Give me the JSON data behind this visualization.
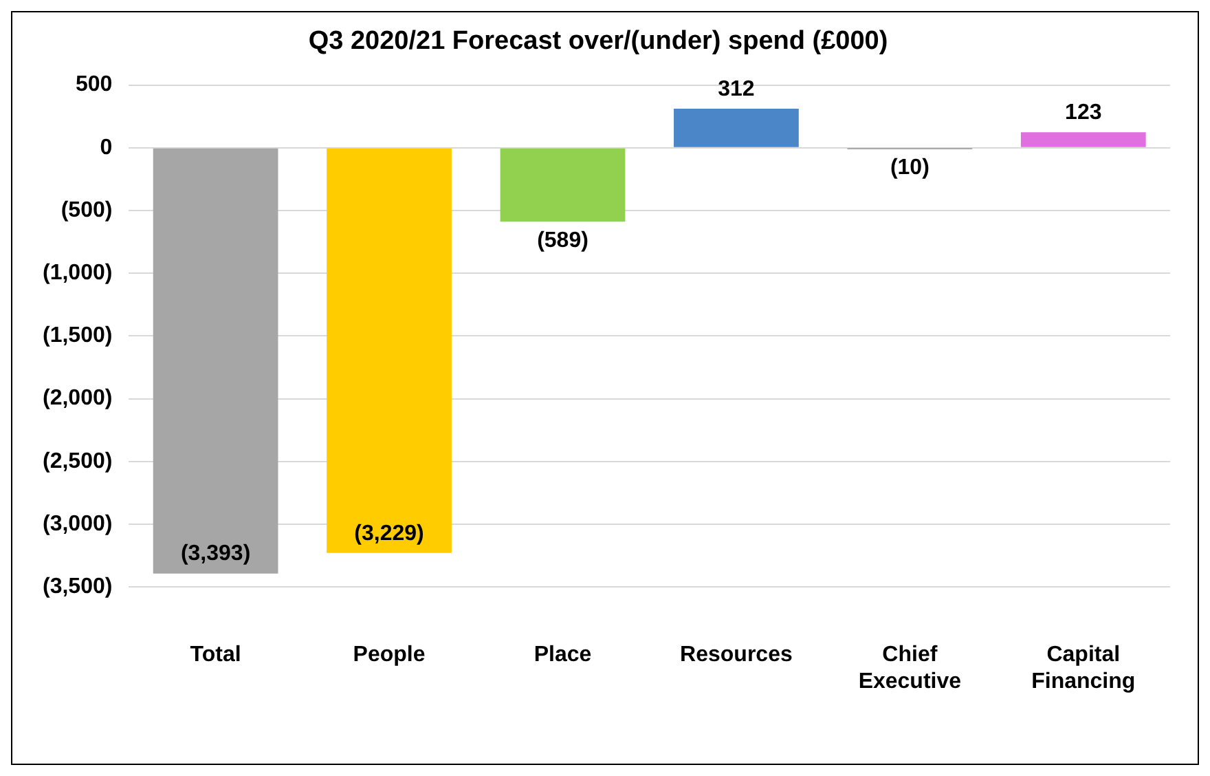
{
  "chart_data": {
    "type": "bar",
    "title": "Q3 2020/21 Forecast over/(under) spend (£000)",
    "categories": [
      "Total",
      "People",
      "Place",
      "Resources",
      "Chief Executive",
      "Capital Financing"
    ],
    "values": [
      -3393,
      -3229,
      -589,
      312,
      -10,
      123
    ],
    "colors": [
      "#a6a6a6",
      "#ffcc00",
      "#92d050",
      "#4a86c8",
      "#404040",
      "#e070e0"
    ],
    "value_labels": [
      "(3,393)",
      "(3,229)",
      "(589)",
      "312",
      "(10)",
      "123"
    ],
    "ylim": [
      -3500,
      500
    ],
    "yticks": [
      500,
      {
        "value": 0,
        "label": "0"
      },
      {
        "value": -500,
        "label": "(500)"
      },
      {
        "value": -1000,
        "label": "(1,000)"
      },
      {
        "value": -1500,
        "label": "(1,500)"
      },
      {
        "value": -2000,
        "label": "(2,000)"
      },
      {
        "value": -2500,
        "label": "(2,500)"
      },
      {
        "value": -3000,
        "label": "(3,000)"
      },
      {
        "value": -3500,
        "label": "(3,500)"
      }
    ],
    "grid": "y",
    "legend": false
  }
}
